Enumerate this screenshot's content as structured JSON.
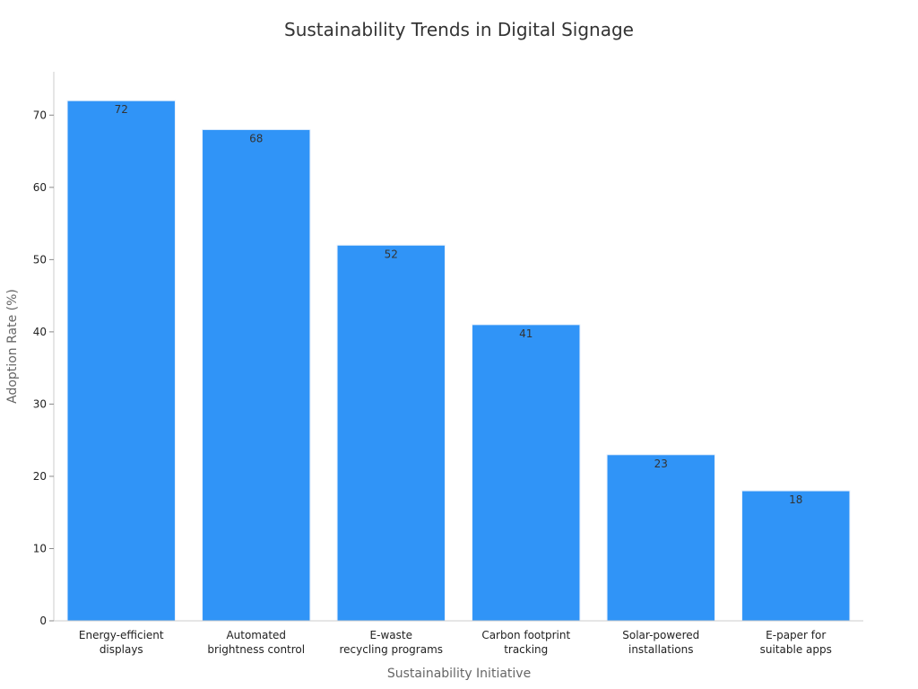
{
  "chart_data": {
    "type": "bar",
    "title": "Sustainability Trends in Digital Signage",
    "xlabel": "Sustainability Initiative",
    "ylabel": "Adoption Rate (%)",
    "categories": [
      [
        "Energy-efficient",
        "displays"
      ],
      [
        "Automated",
        "brightness control"
      ],
      [
        "E-waste",
        "recycling programs"
      ],
      [
        "Carbon footprint",
        "tracking"
      ],
      [
        "Solar-powered",
        "installations"
      ],
      [
        "E-paper for",
        "suitable apps"
      ]
    ],
    "values": [
      72,
      68,
      52,
      41,
      23,
      18
    ],
    "ylim": [
      0,
      76
    ],
    "yticks": [
      0,
      10,
      20,
      30,
      40,
      50,
      60,
      70
    ],
    "grid": false,
    "bar_color": "#3094f7",
    "bar_edge_color": "#e8f1fc"
  }
}
